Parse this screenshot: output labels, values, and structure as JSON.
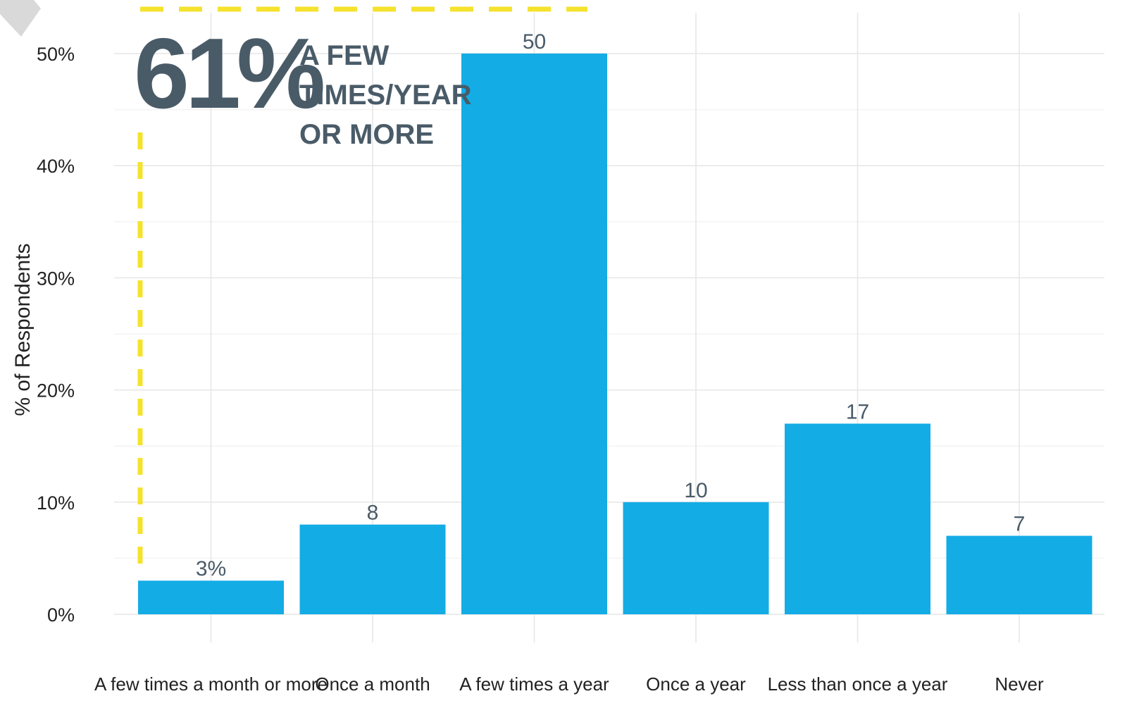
{
  "chart_data": {
    "type": "bar",
    "categories": [
      "A few times a month or more",
      "Once a month",
      "A few times a year",
      "Once a year",
      "Less than once a year",
      "Never"
    ],
    "values": [
      3,
      8,
      50,
      10,
      17,
      7
    ],
    "data_labels": [
      "3%",
      "8",
      "50",
      "10",
      "17",
      "7"
    ],
    "title": "",
    "xlabel": "",
    "ylabel": "% of Respondents",
    "ylim": [
      0,
      54
    ],
    "yticks": [
      0,
      10,
      20,
      30,
      40,
      50
    ],
    "ytick_labels": [
      "0%",
      "10%",
      "20%",
      "30%",
      "40%",
      "50%"
    ],
    "grid": true,
    "bar_color": "#14ace5",
    "annotation": {
      "big_text": "61%",
      "lines": [
        "A FEW",
        "TIMES/YEAR",
        "OR MORE"
      ],
      "bracket_color": "#f5e22c"
    }
  }
}
